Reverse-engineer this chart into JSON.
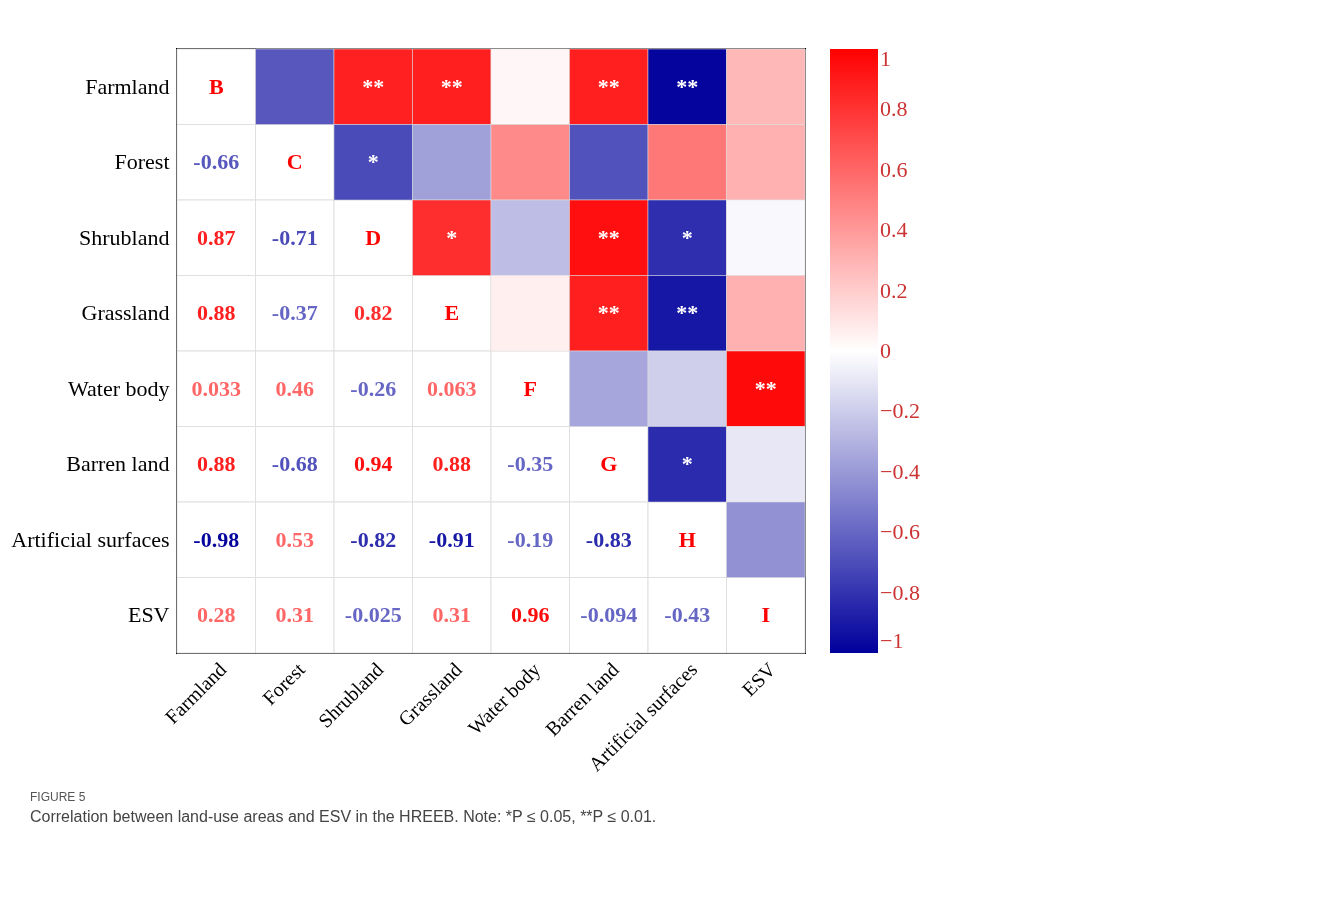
{
  "chart_data": {
    "type": "heatmap",
    "categories": [
      "Farmland",
      "Forest",
      "Shrubland",
      "Grassland",
      "Water body",
      "Barren land",
      "Artificial surfaces",
      "ESV"
    ],
    "y_categories": [
      "Farmland",
      "Forest",
      "Shrubland",
      "Grassland",
      "Water body",
      "Barren land",
      "Artificial surfaces",
      "ESV"
    ],
    "cells": [
      [
        null,
        -0.66,
        0.87,
        0.88,
        0.033,
        0.88,
        -0.98,
        0.28
      ],
      [
        null,
        null,
        -0.71,
        -0.37,
        0.46,
        -0.68,
        0.53,
        0.31
      ],
      [
        null,
        null,
        null,
        0.82,
        -0.26,
        0.94,
        -0.82,
        -0.025
      ],
      [
        null,
        null,
        null,
        null,
        0.063,
        0.88,
        -0.91,
        0.31
      ],
      [
        null,
        null,
        null,
        null,
        null,
        -0.35,
        -0.19,
        0.96
      ],
      [
        null,
        null,
        null,
        null,
        null,
        null,
        -0.83,
        -0.094
      ],
      [
        null,
        null,
        null,
        null,
        null,
        null,
        null,
        -0.43
      ],
      [
        null,
        null,
        null,
        null,
        null,
        null,
        null,
        null
      ]
    ],
    "cell_labels": [
      [
        "B",
        null,
        "**",
        "**",
        null,
        "**",
        "**",
        null
      ],
      [
        "-0.66",
        "C",
        "*",
        null,
        null,
        null,
        null,
        null
      ],
      [
        "0.87",
        "-0.71",
        "D",
        "*",
        null,
        "**",
        "*",
        null
      ],
      [
        "0.88",
        "-0.37",
        "0.82",
        "E",
        null,
        "**",
        "**",
        null
      ],
      [
        "0.033",
        "0.46",
        "-0.26",
        "0.063",
        "F",
        null,
        null,
        "**"
      ],
      [
        "0.88",
        "-0.68",
        "0.94",
        "0.88",
        "-0.35",
        "G",
        "*",
        null
      ],
      [
        "-0.98",
        "0.53",
        "-0.82",
        "-0.91",
        "-0.19",
        "-0.83",
        "H",
        null
      ],
      [
        "0.28",
        "0.31",
        "-0.025",
        "0.31",
        "0.96",
        "-0.094",
        "-0.43",
        "I"
      ]
    ],
    "clim": [
      -1,
      1
    ],
    "cticks": [
      -1,
      -0.8,
      -0.6,
      -0.4,
      -0.2,
      0,
      0.2,
      0.4,
      0.6,
      0.8,
      1
    ],
    "annotations": [
      "FIGURE 5",
      "Correlation between land-use areas and ESV in the HREEB. Note: *P ≤ 0.05, **P ≤ 0.01."
    ]
  }
}
